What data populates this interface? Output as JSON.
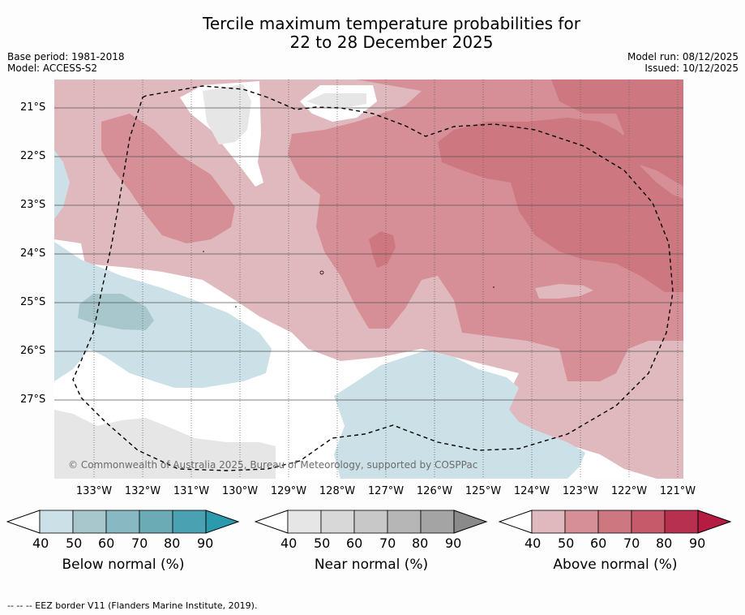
{
  "title": {
    "line1": "Tercile maximum temperature probabilities for",
    "line2": "22 to 28 December 2025"
  },
  "meta": {
    "base_period": "Base period: 1981-2018",
    "model": "Model: ACCESS-S2",
    "model_run": "Model run: 08/12/2025",
    "issued": "Issued: 10/12/2025"
  },
  "latitudes": [
    "21°S",
    "22°S",
    "23°S",
    "24°S",
    "25°S",
    "26°S",
    "27°S"
  ],
  "longitudes": [
    "133°W",
    "132°W",
    "131°W",
    "130°W",
    "129°W",
    "128°W",
    "127°W",
    "126°W",
    "125°W",
    "124°W",
    "123°W",
    "122°W",
    "121°W"
  ],
  "copyright": "© Commonwealth of Australia 2025, Bureau of Meteorology, supported by COSPPac",
  "colorbars": [
    {
      "name": "below",
      "title": "Below normal (%)",
      "ticks": [
        "40",
        "50",
        "60",
        "70",
        "80",
        "90"
      ],
      "colors": [
        "#cbe1e7",
        "#a7c7cd",
        "#88b9c2",
        "#6aabb6",
        "#4aa1b1",
        "#2b9aad"
      ]
    },
    {
      "name": "near",
      "title": "Near normal (%)",
      "ticks": [
        "40",
        "50",
        "60",
        "70",
        "80",
        "90"
      ],
      "colors": [
        "#e6e6e6",
        "#d8d8d8",
        "#c8c8c8",
        "#b6b6b6",
        "#a4a4a4",
        "#8a8a8a"
      ]
    },
    {
      "name": "above",
      "title": "Above normal (%)",
      "ticks": [
        "40",
        "50",
        "60",
        "70",
        "80",
        "90"
      ],
      "colors": [
        "#e0b9be",
        "#d68f97",
        "#cd7880",
        "#c75a6a",
        "#b83050",
        "#b41c41"
      ]
    }
  ],
  "footnote": "--  --  -- EEZ border V11 (Flanders Marine Institute, 2019)."
}
